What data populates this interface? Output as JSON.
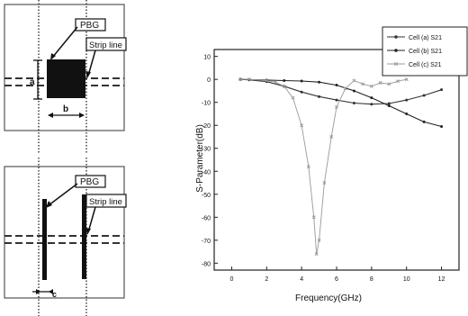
{
  "top_panel": {
    "pbg_label": "PBG",
    "stripline_label": "Strip line",
    "dim_a": "a",
    "dim_b": "b"
  },
  "bottom_panel": {
    "pbg_label": "PBG",
    "stripline_label": "Strip line",
    "dim_c": "c"
  },
  "chart_data": {
    "type": "line",
    "title": "",
    "xlabel": "Frequency(GHz)",
    "ylabel": "S-Parameter(dB)",
    "xlim": [
      -1,
      13
    ],
    "ylim": [
      -83,
      13
    ],
    "xticks": [
      "0",
      "2",
      "4",
      "6",
      "8",
      "10",
      "12"
    ],
    "yticks": [
      "10",
      "0",
      "-10",
      "-20",
      "-30",
      "-40",
      "-50",
      "-60",
      "-70",
      "-80"
    ],
    "legend_position": "top-right",
    "series": [
      {
        "name": "Cell (a) S21",
        "marker": "circle",
        "points": [
          [
            0.5,
            0
          ],
          [
            1,
            -0.2
          ],
          [
            2,
            -1
          ],
          [
            3,
            -3
          ],
          [
            4,
            -5.5
          ],
          [
            5,
            -7.5
          ],
          [
            6,
            -9
          ],
          [
            7,
            -10.3
          ],
          [
            8,
            -10.8
          ],
          [
            9,
            -10.5
          ],
          [
            10,
            -9
          ],
          [
            11,
            -7
          ],
          [
            12,
            -4.5
          ]
        ]
      },
      {
        "name": "Cell (b) S21",
        "marker": "circle",
        "points": [
          [
            0.5,
            0
          ],
          [
            1,
            -0.1
          ],
          [
            2,
            -0.3
          ],
          [
            3,
            -0.5
          ],
          [
            4,
            -0.7
          ],
          [
            5,
            -1.2
          ],
          [
            6,
            -2.5
          ],
          [
            7,
            -5
          ],
          [
            8,
            -8
          ],
          [
            9,
            -11.5
          ],
          [
            10,
            -15
          ],
          [
            11,
            -18.5
          ],
          [
            12,
            -20.5
          ]
        ]
      },
      {
        "name": "Cell (c) S21",
        "marker": "x",
        "points": [
          [
            0.5,
            0
          ],
          [
            1,
            0
          ],
          [
            2,
            -0.5
          ],
          [
            2.5,
            -1.2
          ],
          [
            3,
            -3
          ],
          [
            3.5,
            -8
          ],
          [
            4,
            -20
          ],
          [
            4.4,
            -38
          ],
          [
            4.7,
            -60
          ],
          [
            4.85,
            -76
          ],
          [
            5,
            -70
          ],
          [
            5.3,
            -45
          ],
          [
            5.7,
            -25
          ],
          [
            6,
            -12
          ],
          [
            6.5,
            -4
          ],
          [
            7,
            -0.5
          ],
          [
            7.5,
            -2
          ],
          [
            8,
            -3
          ],
          [
            8.5,
            -1.5
          ],
          [
            9,
            -2
          ],
          [
            9.5,
            -0.8
          ],
          [
            10,
            0
          ]
        ]
      }
    ]
  }
}
